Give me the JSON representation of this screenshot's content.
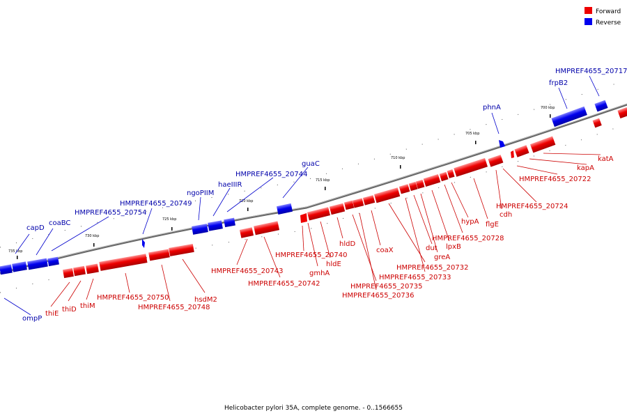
{
  "title": "Helicobacter pylori 35A, complete genome. - 0..1566655",
  "legend": [
    {
      "label": "Forward",
      "color": "#ee0000"
    },
    {
      "label": "Reverse",
      "color": "#0000ee"
    }
  ],
  "colors": {
    "forward": "#ee0000",
    "reverse": "#0000ee",
    "forward_label": "#cc0000",
    "reverse_label": "#0000aa",
    "backbone": "#808080"
  },
  "kbp_marks": [
    "735 kbp",
    "730 kbp",
    "725 kbp",
    "720 kbp",
    "715 kbp",
    "710 kbp",
    "705 kbp",
    "700 kbp"
  ],
  "forward_labels": [
    "thiE",
    "thiD",
    "thiM",
    "HMPREF4655_20750",
    "HMPREF4655_20748",
    "hsdM2",
    "HMPREF4655_20743",
    "HMPREF4655_20742",
    "HMPREF4655_20740",
    "gmhA",
    "hldE",
    "hldD",
    "HMPREF4655_20735",
    "HMPREF4655_20736",
    "coaX",
    "HMPREF4655_20732",
    "HMPREF4655_20733",
    "dut",
    "greA",
    "lpxB",
    "HMPREF4655_20728",
    "hypA",
    "flgE",
    "cdh",
    "HMPREF4655_20724",
    "HMPREF4655_20722",
    "kapA",
    "katA"
  ],
  "reverse_labels": [
    "ompP",
    "capD",
    "coaBC",
    "HMPREF4655_20754",
    "HMPREF4655_20749",
    "ngoPIIM",
    "haeIIIR",
    "HMPREF4655_20744",
    "guaC",
    "phnA",
    "frpB2",
    "HMPREF4655_20717"
  ]
}
